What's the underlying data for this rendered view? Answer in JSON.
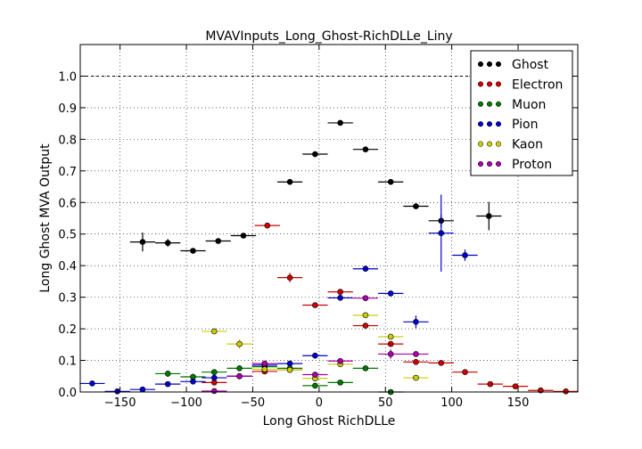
{
  "chart_data": {
    "type": "scatter",
    "title": "MVAVInputs_Long_Ghost-RichDLLe_Liny",
    "xlabel": "Long Ghost RichDLLe",
    "ylabel": "Long Ghost MVA Output",
    "xlim": [
      -180,
      195
    ],
    "ylim": [
      0,
      1.1
    ],
    "xticks": [
      -150,
      -100,
      -50,
      0,
      50,
      100,
      150
    ],
    "xtick_labels": [
      "−150",
      "−100",
      "−50",
      "0",
      "50",
      "100",
      "150"
    ],
    "yticks": [
      0.0,
      0.1,
      0.2,
      0.3,
      0.4,
      0.5,
      0.6,
      0.7,
      0.8,
      0.9,
      1.0
    ],
    "ytick_labels": [
      "0.0",
      "0.1",
      "0.2",
      "0.3",
      "0.4",
      "0.5",
      "0.6",
      "0.7",
      "0.8",
      "0.9",
      "1.0"
    ],
    "grid": true,
    "reference_line": {
      "y": 1.0,
      "style": "dashed"
    },
    "legend_position": "top-right",
    "x_half_width": 9.5,
    "series": [
      {
        "name": "Ghost",
        "color": "#000000",
        "points": [
          {
            "x": -133,
            "y": 0.475,
            "err": 0.03
          },
          {
            "x": -114,
            "y": 0.472,
            "err": 0.012
          },
          {
            "x": -95,
            "y": 0.447,
            "err": 0.005
          },
          {
            "x": -76,
            "y": 0.478,
            "err": 0.005
          },
          {
            "x": -57,
            "y": 0.495,
            "err": 0.005
          },
          {
            "x": -22,
            "y": 0.665,
            "err": 0.005
          },
          {
            "x": -3,
            "y": 0.753,
            "err": 0.005
          },
          {
            "x": 16,
            "y": 0.852,
            "err": 0.005
          },
          {
            "x": 35,
            "y": 0.768,
            "err": 0.005
          },
          {
            "x": 54,
            "y": 0.665,
            "err": 0.005
          },
          {
            "x": 73,
            "y": 0.588,
            "err": 0.005
          },
          {
            "x": 92,
            "y": 0.542,
            "err": 0.02
          },
          {
            "x": 128,
            "y": 0.557,
            "err": 0.045
          }
        ]
      },
      {
        "name": "Electron",
        "color": "#cc0000",
        "points": [
          {
            "x": -39,
            "y": 0.527,
            "err": 0.005
          },
          {
            "x": -22,
            "y": 0.362,
            "err": 0.015
          },
          {
            "x": -3,
            "y": 0.275,
            "err": 0.005
          },
          {
            "x": 16,
            "y": 0.317,
            "err": 0.005
          },
          {
            "x": 35,
            "y": 0.21,
            "err": 0.005
          },
          {
            "x": 54,
            "y": 0.152,
            "err": 0.005
          },
          {
            "x": 73,
            "y": 0.095,
            "err": 0.005
          },
          {
            "x": 92,
            "y": 0.092,
            "err": 0.005
          },
          {
            "x": 110,
            "y": 0.063,
            "err": 0.003
          },
          {
            "x": 129,
            "y": 0.025,
            "err": 0.003
          },
          {
            "x": 148,
            "y": 0.018,
            "err": 0.003
          },
          {
            "x": 167,
            "y": 0.005,
            "err": 0.002
          },
          {
            "x": 186,
            "y": 0.002,
            "err": 0.002
          },
          {
            "x": -22,
            "y": 0.07,
            "err": 0.004
          },
          {
            "x": -41,
            "y": 0.065,
            "err": 0.004
          },
          {
            "x": -60,
            "y": 0.05,
            "err": 0.004
          },
          {
            "x": -79,
            "y": 0.03,
            "err": 0.004
          }
        ]
      },
      {
        "name": "Muon",
        "color": "#007700",
        "points": [
          {
            "x": -114,
            "y": 0.058,
            "err": 0.01
          },
          {
            "x": -95,
            "y": 0.048,
            "err": 0.006
          },
          {
            "x": -79,
            "y": 0.063,
            "err": 0.005
          },
          {
            "x": -60,
            "y": 0.075,
            "err": 0.005
          },
          {
            "x": -41,
            "y": 0.08,
            "err": 0.005
          },
          {
            "x": -22,
            "y": 0.075,
            "err": 0.005
          },
          {
            "x": -3,
            "y": 0.02,
            "err": 0.005
          },
          {
            "x": 16,
            "y": 0.03,
            "err": 0.004
          },
          {
            "x": 35,
            "y": 0.075,
            "err": 0.004
          },
          {
            "x": 54,
            "y": 0.0,
            "err": 0.002
          }
        ]
      },
      {
        "name": "Pion",
        "color": "#0000cc",
        "points": [
          {
            "x": -171,
            "y": 0.027,
            "err": 0.004
          },
          {
            "x": -152,
            "y": 0.002,
            "err": 0.002
          },
          {
            "x": -133,
            "y": 0.008,
            "err": 0.003
          },
          {
            "x": -114,
            "y": 0.025,
            "err": 0.004
          },
          {
            "x": -95,
            "y": 0.033,
            "err": 0.004
          },
          {
            "x": -79,
            "y": 0.045,
            "err": 0.004
          },
          {
            "x": -60,
            "y": 0.05,
            "err": 0.004
          },
          {
            "x": -41,
            "y": 0.085,
            "err": 0.004
          },
          {
            "x": -22,
            "y": 0.09,
            "err": 0.004
          },
          {
            "x": -3,
            "y": 0.115,
            "err": 0.004
          },
          {
            "x": 16,
            "y": 0.298,
            "err": 0.004
          },
          {
            "x": 35,
            "y": 0.39,
            "err": 0.004
          },
          {
            "x": 54,
            "y": 0.312,
            "err": 0.004
          },
          {
            "x": 73,
            "y": 0.222,
            "err": 0.02
          },
          {
            "x": 92,
            "y": 0.503,
            "err": 0.122
          },
          {
            "x": 110,
            "y": 0.433,
            "err": 0.018
          }
        ]
      },
      {
        "name": "Kaon",
        "color": "#cccc00",
        "points": [
          {
            "x": -79,
            "y": 0.192,
            "err": 0.004
          },
          {
            "x": -60,
            "y": 0.152,
            "err": 0.015
          },
          {
            "x": -41,
            "y": 0.072,
            "err": 0.004
          },
          {
            "x": -22,
            "y": 0.07,
            "err": 0.004
          },
          {
            "x": -3,
            "y": 0.043,
            "err": 0.004
          },
          {
            "x": 16,
            "y": 0.088,
            "err": 0.004
          },
          {
            "x": 35,
            "y": 0.243,
            "err": 0.004
          },
          {
            "x": 54,
            "y": 0.175,
            "err": 0.004
          },
          {
            "x": 73,
            "y": 0.045,
            "err": 0.004
          }
        ]
      },
      {
        "name": "Proton",
        "color": "#aa00aa",
        "points": [
          {
            "x": -79,
            "y": 0.003,
            "err": 0.002
          },
          {
            "x": -60,
            "y": 0.05,
            "err": 0.004
          },
          {
            "x": -41,
            "y": 0.09,
            "err": 0.004
          },
          {
            "x": -3,
            "y": 0.055,
            "err": 0.004
          },
          {
            "x": 16,
            "y": 0.098,
            "err": 0.004
          },
          {
            "x": 35,
            "y": 0.297,
            "err": 0.004
          },
          {
            "x": 54,
            "y": 0.12,
            "err": 0.015
          },
          {
            "x": 73,
            "y": 0.12,
            "err": 0.004
          }
        ]
      }
    ]
  }
}
